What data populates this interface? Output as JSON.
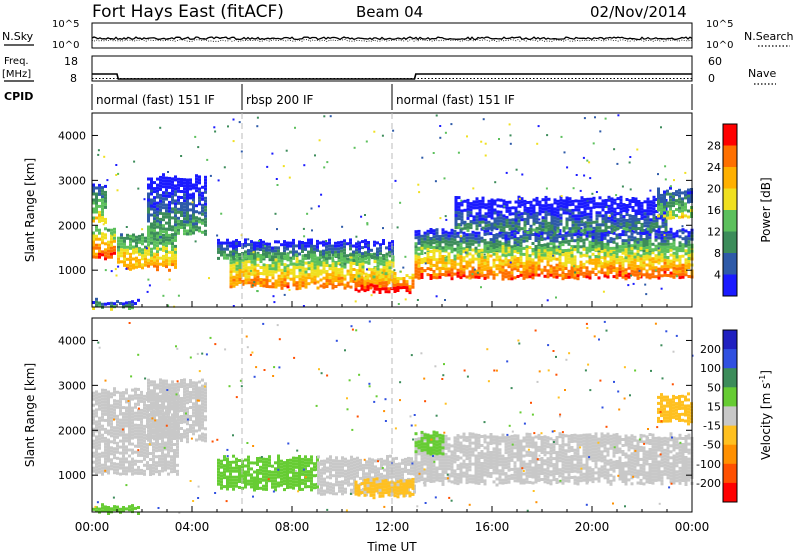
{
  "header": {
    "station": "Fort Hays East (fitACF)",
    "beam": "Beam 04",
    "date": "02/Nov/2014"
  },
  "colors": {
    "power": [
      "#1a1aff",
      "#2e5aa8",
      "#3c8c5a",
      "#5cc05c",
      "#f0e020",
      "#ffb000",
      "#ff7000",
      "#ff0000"
    ],
    "velocity": [
      "#2020c0",
      "#3050e0",
      "#3c8c5a",
      "#66cc33",
      "#c8c8c8",
      "#ffc020",
      "#ff9000",
      "#ff5000",
      "#ff0000"
    ]
  },
  "chart_data": [
    {
      "type": "line",
      "panel": "noise",
      "left_label": "N.Sky",
      "right_label": "N.Search",
      "left_ticks": [
        "10^5",
        "10^0"
      ],
      "right_ticks": [
        "10^5",
        "10^0"
      ],
      "xlim": [
        "00:00",
        "24:00"
      ],
      "series": []
    },
    {
      "type": "line",
      "panel": "frequency",
      "left_label": "Freq.",
      "left_unit": "[MHz]",
      "right_label": "Nave",
      "left_ticks": [
        18,
        8
      ],
      "right_ticks": [
        60,
        0
      ],
      "freq_mhz": [
        {
          "x": 0.0,
          "y": 10.8
        },
        {
          "x": 1.0,
          "y": 10.8
        },
        {
          "x": 1.05,
          "y": 8.8
        },
        {
          "x": 12.9,
          "y": 8.8
        },
        {
          "x": 12.95,
          "y": 10.8
        },
        {
          "x": 24.0,
          "y": 10.8
        }
      ],
      "nave": [
        {
          "x": 0.0,
          "y": 6
        },
        {
          "x": 24.0,
          "y": 6
        }
      ]
    },
    {
      "type": "table",
      "panel": "cpid",
      "label": "CPID",
      "segments": [
        {
          "start": 0,
          "end": 6,
          "text": "normal (fast) 151 IF"
        },
        {
          "start": 6,
          "end": 12,
          "text": "rbsp 200 IF"
        },
        {
          "start": 12,
          "end": 24,
          "text": "normal (fast) 151 IF"
        }
      ]
    },
    {
      "type": "heatmap",
      "panel": "power",
      "ylabel": "Slant Range [km]",
      "ylim": [
        180,
        4500
      ],
      "yticks": [
        1000,
        2000,
        3000,
        4000
      ],
      "colorbar": {
        "label": "Power [dB]",
        "ticks": [
          4,
          8,
          12,
          16,
          20,
          24,
          28
        ],
        "range": [
          0,
          32
        ]
      },
      "bands": [
        {
          "t0": 0.0,
          "t1": 0.9,
          "lo": 1300,
          "hi": 1950,
          "level": 22
        },
        {
          "t0": 0.0,
          "t1": 0.6,
          "lo": 2100,
          "hi": 2900,
          "level": 14
        },
        {
          "t0": 1.0,
          "t1": 3.4,
          "lo": 1050,
          "hi": 1800,
          "level": 18
        },
        {
          "t0": 2.2,
          "t1": 4.6,
          "lo": 1800,
          "hi": 3100,
          "level": 7
        },
        {
          "t0": 0.0,
          "t1": 1.9,
          "lo": 200,
          "hi": 330,
          "level": 10
        },
        {
          "t0": 5.5,
          "t1": 12.0,
          "lo": 650,
          "hi": 1350,
          "level": 20
        },
        {
          "t0": 5.0,
          "t1": 12.0,
          "lo": 1300,
          "hi": 1650,
          "level": 8
        },
        {
          "t0": 10.5,
          "t1": 12.9,
          "lo": 550,
          "hi": 900,
          "level": 26
        },
        {
          "t0": 12.9,
          "t1": 24.0,
          "lo": 850,
          "hi": 1500,
          "level": 22
        },
        {
          "t0": 12.9,
          "t1": 24.0,
          "lo": 1450,
          "hi": 1900,
          "level": 10
        },
        {
          "t0": 14.5,
          "t1": 23.0,
          "lo": 1900,
          "hi": 2600,
          "level": 5
        },
        {
          "t0": 22.6,
          "t1": 24.0,
          "lo": 2200,
          "hi": 2800,
          "level": 12
        }
      ]
    },
    {
      "type": "heatmap",
      "panel": "velocity",
      "xlabel": "Time UT",
      "ylabel": "Slant Range [km]",
      "ylim": [
        180,
        4500
      ],
      "yticks": [
        1000,
        2000,
        3000,
        4000
      ],
      "xticks": [
        "00:00",
        "04:00",
        "08:00",
        "12:00",
        "16:00",
        "20:00",
        "00:00"
      ],
      "xlim": [
        0,
        24
      ],
      "colorbar": {
        "label": "Velocity [m s",
        "label_sup": "-1",
        "label_end": "]",
        "ticks": [
          200,
          100,
          50,
          15,
          -15,
          -50,
          -100,
          -200
        ]
      },
      "bands": [
        {
          "t0": 0.0,
          "t1": 3.4,
          "lo": 1050,
          "hi": 2900,
          "level": 0
        },
        {
          "t0": 2.2,
          "t1": 4.6,
          "lo": 1800,
          "hi": 3100,
          "level": 0
        },
        {
          "t0": 5.0,
          "t1": 9.0,
          "lo": 700,
          "hi": 1400,
          "level": 40
        },
        {
          "t0": 9.0,
          "t1": 12.9,
          "lo": 600,
          "hi": 1400,
          "level": 0
        },
        {
          "t0": 10.5,
          "t1": 12.9,
          "lo": 550,
          "hi": 900,
          "level": -40
        },
        {
          "t0": 12.9,
          "t1": 24.0,
          "lo": 850,
          "hi": 1900,
          "level": 0
        },
        {
          "t0": 12.9,
          "t1": 14.0,
          "lo": 1500,
          "hi": 1950,
          "level": 40
        },
        {
          "t0": 22.6,
          "t1": 24.0,
          "lo": 2200,
          "hi": 2800,
          "level": -40
        },
        {
          "t0": 0.0,
          "t1": 1.9,
          "lo": 200,
          "hi": 330,
          "level": 40
        }
      ]
    }
  ]
}
